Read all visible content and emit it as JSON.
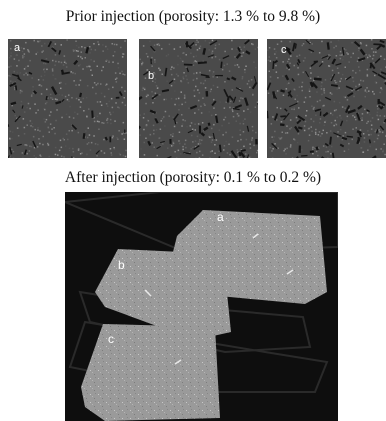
{
  "captions": {
    "before": "Prior injection (porosity: 1.3 % to 9.8 %)",
    "after": "After injection (porosity: 0.1 % to 0.2 %)"
  },
  "before_panels": [
    {
      "label": "a"
    },
    {
      "label": "b"
    },
    {
      "label": "c"
    }
  ],
  "after_samples": [
    {
      "label": "a"
    },
    {
      "label": "b"
    },
    {
      "label": "c"
    }
  ],
  "colors": {
    "tile_background": "#4a4a4a",
    "ct_background": "#0e0e0e",
    "sample_fill": "#9a9a9a"
  }
}
